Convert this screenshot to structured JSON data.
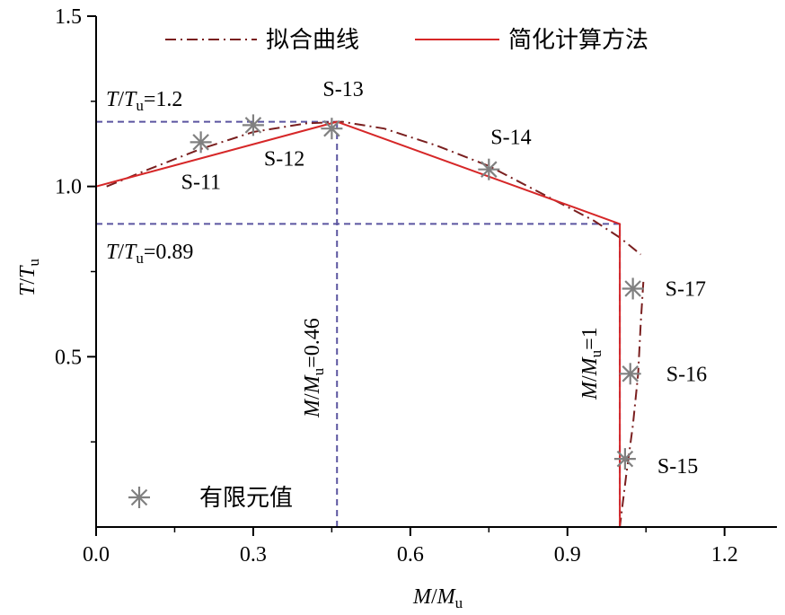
{
  "chart_data": {
    "type": "line",
    "xlabel": {
      "var": "M",
      "sep": "/",
      "var2": "M",
      "sub": "u"
    },
    "ylabel": {
      "var": "T",
      "sep": "/",
      "var2": "T",
      "sub": "u"
    },
    "xlim": [
      0.0,
      1.3
    ],
    "ylim": [
      0.0,
      1.5
    ],
    "xticks": [
      {
        "value": 0.0,
        "label": "0.0"
      },
      {
        "value": 0.3,
        "label": "0.3"
      },
      {
        "value": 0.6,
        "label": "0.6"
      },
      {
        "value": 0.9,
        "label": "0.9"
      },
      {
        "value": 1.2,
        "label": "1.2"
      }
    ],
    "yticks": [
      {
        "value": 0.5,
        "label": "0.5"
      },
      {
        "value": 1.0,
        "label": "1.0"
      },
      {
        "value": 1.5,
        "label": "1.5"
      }
    ],
    "legend": {
      "placement": "top",
      "fitted_label": "拟合曲线",
      "simplified_label": "简化计算方法",
      "fe_label": "有限元值"
    },
    "series": [
      {
        "name": "拟合曲线",
        "style": "dash-dot",
        "color": "#7a1f1f",
        "points": [
          [
            0.02,
            1.0
          ],
          [
            0.1,
            1.05
          ],
          [
            0.2,
            1.11
          ],
          [
            0.3,
            1.16
          ],
          [
            0.4,
            1.185
          ],
          [
            0.47,
            1.19
          ],
          [
            0.55,
            1.17
          ],
          [
            0.65,
            1.12
          ],
          [
            0.75,
            1.06
          ],
          [
            0.85,
            0.98
          ],
          [
            0.95,
            0.9
          ],
          [
            1.0,
            0.85
          ],
          [
            1.04,
            0.8
          ]
        ]
      },
      {
        "name": "拟合曲线",
        "style": "dash-dot",
        "color": "#7a1f1f",
        "points": [
          [
            1.045,
            0.72
          ],
          [
            1.04,
            0.6
          ],
          [
            1.035,
            0.45
          ],
          [
            1.025,
            0.3
          ],
          [
            1.012,
            0.15
          ],
          [
            1.0,
            0.0
          ]
        ]
      },
      {
        "name": "简化计算方法",
        "style": "solid",
        "color": "#d62728",
        "points": [
          [
            0.0,
            1.0
          ],
          [
            0.46,
            1.19
          ],
          [
            1.0,
            0.89
          ],
          [
            1.0,
            0.0
          ]
        ]
      },
      {
        "name": "有限元值",
        "style": "marker-asterisk",
        "color": "#808080",
        "points": [
          {
            "label": "S-11",
            "x": 0.2,
            "y": 1.13
          },
          {
            "label": "S-12",
            "x": 0.3,
            "y": 1.18
          },
          {
            "label": "S-13",
            "x": 0.45,
            "y": 1.17
          },
          {
            "label": "S-14",
            "x": 0.75,
            "y": 1.05
          },
          {
            "label": "S-15",
            "x": 1.01,
            "y": 0.2
          },
          {
            "label": "S-16",
            "x": 1.02,
            "y": 0.45
          },
          {
            "label": "S-17",
            "x": 1.025,
            "y": 0.7
          }
        ]
      }
    ],
    "reference_lines": [
      {
        "orientation": "horizontal",
        "value": 1.19,
        "from": 0.0,
        "to": 0.46,
        "label": {
          "var": "T",
          "sep": "/",
          "var2": "T",
          "sub": "u",
          "suffix": "=1.2"
        }
      },
      {
        "orientation": "horizontal",
        "value": 0.89,
        "from": 0.0,
        "to": 1.0,
        "label": {
          "var": "T",
          "sep": "/",
          "var2": "T",
          "sub": "u",
          "suffix": "=0.89"
        }
      },
      {
        "orientation": "vertical",
        "value": 0.46,
        "from": 0.0,
        "to": 1.19,
        "label": {
          "var": "M",
          "sep": "/",
          "var2": "M",
          "sub": "u",
          "suffix": "=0.46"
        }
      },
      {
        "orientation": "vertical",
        "value": 1.0,
        "from": 0.0,
        "to": 0.89,
        "label": {
          "var": "M",
          "sep": "/",
          "var2": "M",
          "sub": "u",
          "suffix": "=1"
        }
      }
    ],
    "colors": {
      "reference": "#5b55a0",
      "fitted": "#7a1f1f",
      "simplified": "#d62728",
      "marker": "#808080"
    }
  }
}
